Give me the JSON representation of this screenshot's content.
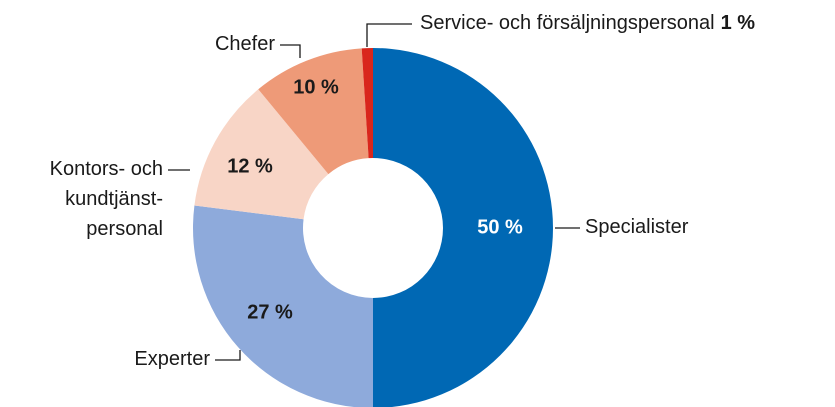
{
  "chart_data": {
    "type": "donut",
    "categories": [
      "Specialister",
      "Experter",
      "Kontors- och\nkundtjänst-\npersonal",
      "Chefer",
      "Service- och försäljningspersonal"
    ],
    "values": [
      50,
      27,
      12,
      10,
      1
    ],
    "value_labels": [
      "50 %",
      "27 %",
      "12 %",
      "10 %",
      "1 %"
    ],
    "colors": [
      "#0068b4",
      "#8eaadb",
      "#f8d5c6",
      "#ee9a78",
      "#d9261c"
    ]
  }
}
